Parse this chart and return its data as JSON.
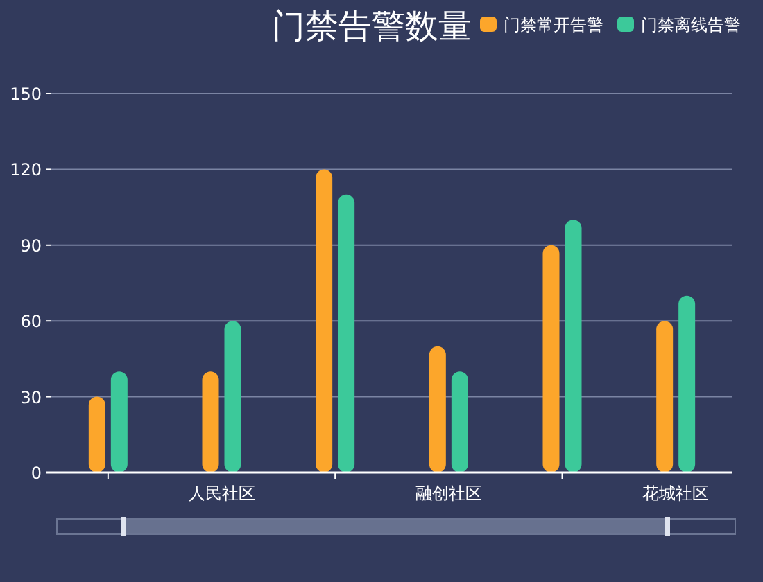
{
  "chart_data": {
    "type": "bar",
    "title": "门禁告警数量",
    "categories": [
      null,
      "人民社区",
      null,
      "融创社区",
      null,
      "花城社区"
    ],
    "series": [
      {
        "name": "门禁常开告警",
        "color": "#fca62b",
        "values": [
          30,
          40,
          120,
          50,
          90,
          60
        ]
      },
      {
        "name": "门禁离线告警",
        "color": "#3cc99a",
        "values": [
          40,
          60,
          110,
          40,
          100,
          70
        ]
      }
    ],
    "ylim": [
      0,
      150
    ],
    "yticks": [
      0,
      30,
      60,
      90,
      120,
      150
    ],
    "grid": "y",
    "legend": "top right"
  }
}
